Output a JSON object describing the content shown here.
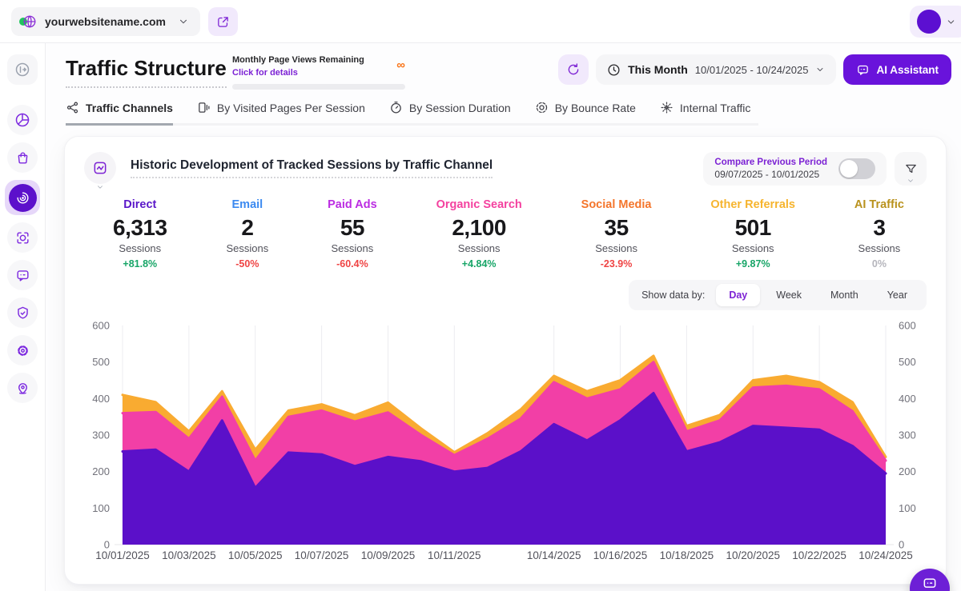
{
  "topbar": {
    "website": "yourwebsitename.com"
  },
  "sidebar": {
    "icons": [
      "collapse-icon",
      "dashboard-pie-icon",
      "store-bag-icon",
      "traffic-radar-icon",
      "goals-target-icon",
      "feedback-chat-icon",
      "security-shield-icon",
      "settings-gear-icon",
      "location-pin-icon"
    ],
    "active": "traffic-radar-icon"
  },
  "header": {
    "title": "Traffic Structure",
    "quota_label": "Monthly Page Views Remaining",
    "quota_link": "Click for details",
    "quota_value": "∞",
    "period_label": "This Month",
    "period_range": "10/01/2025 - 10/24/2025",
    "ai_button": "AI Assistant"
  },
  "tabs": [
    {
      "label": "Traffic Channels",
      "icon": "network-icon",
      "active": true
    },
    {
      "label": "By Visited Pages Per Session",
      "icon": "pages-icon",
      "active": false
    },
    {
      "label": "By Session Duration",
      "icon": "stopwatch-icon",
      "active": false
    },
    {
      "label": "By Bounce Rate",
      "icon": "bounce-target-icon",
      "active": false
    },
    {
      "label": "Internal Traffic",
      "icon": "internal-dots-icon",
      "active": false
    }
  ],
  "card": {
    "title": "Historic Development of Tracked Sessions by Traffic Channel",
    "compare_label": "Compare Previous Period",
    "compare_range": "09/07/2025 - 10/01/2025",
    "compare_enabled": false,
    "show_data_by": {
      "label": "Show data by:",
      "options": [
        "Day",
        "Week",
        "Month",
        "Year"
      ],
      "selected": "Day"
    },
    "channels": [
      {
        "name": "Direct",
        "color": "#5a17c9",
        "value": "6,313",
        "unit": "Sessions",
        "change": "+81.8%",
        "change_color": "#17a567"
      },
      {
        "name": "Email",
        "color": "#3c8af0",
        "value": "2",
        "unit": "Sessions",
        "change": "-50%",
        "change_color": "#ef4444"
      },
      {
        "name": "Paid Ads",
        "color": "#bb2ce2",
        "value": "55",
        "unit": "Sessions",
        "change": "-60.4%",
        "change_color": "#ef4444"
      },
      {
        "name": "Organic Search",
        "color": "#f4419f",
        "value": "2,100",
        "unit": "Sessions",
        "change": "+4.84%",
        "change_color": "#17a567"
      },
      {
        "name": "Social Media",
        "color": "#f4752b",
        "value": "35",
        "unit": "Sessions",
        "change": "-23.9%",
        "change_color": "#ef4444"
      },
      {
        "name": "Other Referrals",
        "color": "#f6b42e",
        "value": "501",
        "unit": "Sessions",
        "change": "+9.87%",
        "change_color": "#17a567"
      },
      {
        "name": "AI Traffic",
        "color": "#b9921d",
        "value": "3",
        "unit": "Sessions",
        "change": "0%",
        "change_color": "#b5b5bc"
      }
    ]
  },
  "chart_data": {
    "type": "area",
    "stacked": true,
    "x": [
      "10/01/2025",
      "10/02/2025",
      "10/03/2025",
      "10/04/2025",
      "10/05/2025",
      "10/06/2025",
      "10/07/2025",
      "10/08/2025",
      "10/09/2025",
      "10/10/2025",
      "10/11/2025",
      "10/12/2025",
      "10/13/2025",
      "10/14/2025",
      "10/15/2025",
      "10/16/2025",
      "10/17/2025",
      "10/18/2025",
      "10/19/2025",
      "10/20/2025",
      "10/21/2025",
      "10/22/2025",
      "10/23/2025",
      "10/24/2025"
    ],
    "tick_indices": [
      0,
      2,
      4,
      6,
      8,
      10,
      13,
      15,
      17,
      19,
      21,
      23
    ],
    "ylim": [
      0,
      600
    ],
    "yticks": [
      0,
      100,
      200,
      300,
      400,
      500,
      600
    ],
    "grid": "vertical-only",
    "legend_position": "none",
    "series": [
      {
        "name": "Direct",
        "color": "#5b10c9",
        "values": [
          255,
          260,
          200,
          340,
          155,
          252,
          247,
          215,
          240,
          228,
          200,
          210,
          255,
          330,
          285,
          340,
          415,
          255,
          280,
          325,
          320,
          315,
          270,
          195
        ]
      },
      {
        "name": "Organic Search",
        "color": "#f23fa6",
        "values": [
          105,
          103,
          90,
          65,
          75,
          98,
          120,
          122,
          122,
          72,
          45,
          80,
          90,
          115,
          115,
          85,
          85,
          55,
          60,
          105,
          115,
          110,
          95,
          35
        ]
      },
      {
        "name": "Other Referrals",
        "color": "#f9ab31",
        "values": [
          50,
          27,
          20,
          15,
          30,
          17,
          17,
          17,
          27,
          18,
          8,
          15,
          25,
          17,
          20,
          25,
          17,
          15,
          15,
          20,
          27,
          20,
          25,
          10
        ]
      }
    ]
  }
}
